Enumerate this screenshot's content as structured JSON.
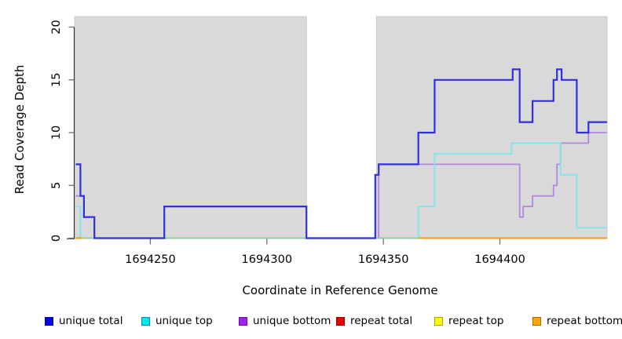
{
  "axes": {
    "x_title": "Coordinate in Reference Genome",
    "y_title": "Read Coverage Depth",
    "x_ticks": [
      {
        "value": 1694250,
        "label": "1694250"
      },
      {
        "value": 1694300,
        "label": "1694300"
      },
      {
        "value": 1694350,
        "label": "1694350"
      },
      {
        "value": 1694400,
        "label": "1694400"
      }
    ],
    "y_ticks": [
      {
        "value": 0,
        "label": "0"
      },
      {
        "value": 5,
        "label": "5"
      },
      {
        "value": 10,
        "label": "10"
      },
      {
        "value": 15,
        "label": "15"
      },
      {
        "value": 20,
        "label": "20"
      }
    ]
  },
  "legend": {
    "items": [
      {
        "label": "unique total",
        "color": "#0000ee"
      },
      {
        "label": "unique top",
        "color": "#00e5ee"
      },
      {
        "label": "unique bottom",
        "color": "#a020f0"
      },
      {
        "label": "repeat total",
        "color": "#e60000"
      },
      {
        "label": "repeat top",
        "color": "#ffff00"
      },
      {
        "label": "repeat bottom",
        "color": "#ffa500"
      }
    ]
  },
  "chart_data": {
    "type": "line",
    "step": true,
    "title": "",
    "xlabel": "Coordinate in Reference Genome",
    "ylabel": "Read Coverage Depth",
    "xlim": [
      1694217.5,
      1694446
    ],
    "ylim": [
      0,
      21
    ],
    "x_tick_values": [
      1694250,
      1694300,
      1694350,
      1694400
    ],
    "y_tick_values": [
      0,
      5,
      10,
      15,
      20
    ],
    "grid": false,
    "legend_position": "bottom",
    "background": {
      "color": "#d9d9d9",
      "border_color": "#c4c4c4",
      "region_top_value": 21,
      "regions": [
        {
          "x0": 1694217.5,
          "x1": 1694317
        },
        {
          "x0": 1694347,
          "x1": 1694446
        }
      ]
    },
    "series": [
      {
        "name": "repeat total",
        "line_color": "#e00000",
        "line_width": 1.4,
        "segments": [
          [
            [
              1694218,
              0
            ],
            [
              1694446,
              0
            ]
          ]
        ]
      },
      {
        "name": "unique bottom",
        "line_color": "#b485e0",
        "line_width": 1.8,
        "segments": [
          [
            [
              1694218,
              4
            ],
            [
              1694221.5,
              2
            ],
            [
              1694226,
              0
            ],
            [
              1694348,
              7
            ],
            [
              1694408.5,
              2
            ],
            [
              1694410,
              3
            ],
            [
              1694414,
              4
            ],
            [
              1694423,
              5
            ],
            [
              1694424.5,
              7
            ],
            [
              1694426,
              9
            ],
            [
              1694438,
              10
            ],
            [
              1694446,
              10
            ]
          ]
        ]
      },
      {
        "name": "unique top",
        "line_color": "#79e8ef",
        "line_width": 1.8,
        "segments": [
          [
            [
              1694218,
              3
            ],
            [
              1694220,
              0
            ],
            [
              1694365,
              3
            ],
            [
              1694372,
              8
            ],
            [
              1694405,
              9
            ],
            [
              1694426,
              6
            ],
            [
              1694433,
              1
            ],
            [
              1694446,
              1
            ]
          ]
        ]
      },
      {
        "name": "repeat top",
        "line_color": "#8ed28e",
        "line_width": 1.8,
        "segments": [
          [
            [
              1694218,
              0
            ],
            [
              1694446,
              0
            ]
          ]
        ]
      },
      {
        "name": "repeat bottom",
        "line_color": "#ff9b00",
        "line_width": 2,
        "segments": [
          [
            [
              1694218,
              0
            ],
            [
              1694221,
              0
            ]
          ],
          [
            [
              1694365,
              0
            ],
            [
              1694446,
              0
            ]
          ]
        ]
      },
      {
        "name": "unique total",
        "line_color": "#2f2fdd",
        "line_width": 2.2,
        "segments": [
          [
            [
              1694218,
              7
            ],
            [
              1694220,
              4
            ],
            [
              1694221.5,
              2
            ],
            [
              1694226,
              0
            ],
            [
              1694256,
              3
            ],
            [
              1694317,
              0
            ],
            [
              1694346.5,
              6
            ],
            [
              1694348,
              7
            ],
            [
              1694365,
              10
            ],
            [
              1694372,
              15
            ],
            [
              1694405.5,
              16
            ],
            [
              1694408.5,
              11
            ],
            [
              1694414,
              13
            ],
            [
              1694423,
              15
            ],
            [
              1694424.5,
              16
            ],
            [
              1694426.5,
              15
            ],
            [
              1694433,
              10
            ],
            [
              1694438,
              11
            ],
            [
              1694446,
              11
            ]
          ]
        ]
      }
    ]
  }
}
